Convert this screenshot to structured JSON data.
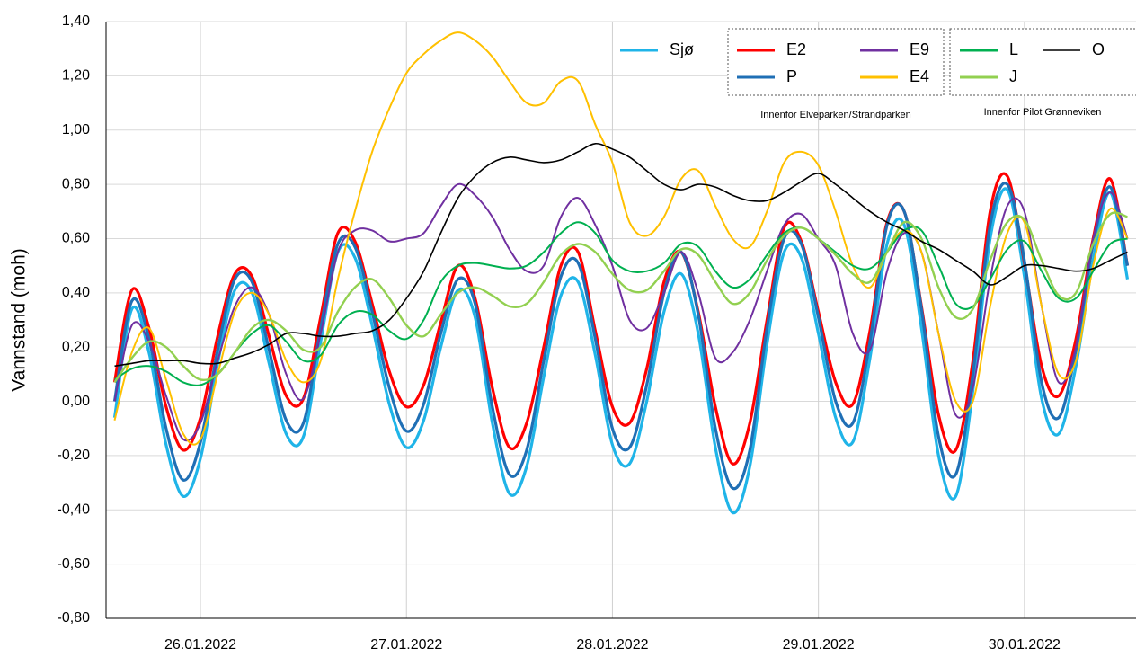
{
  "chart_data": {
    "type": "line",
    "ylabel": "Vannstand (moh)",
    "annotations": [
      "Innenfor Elveparken/Strandparken",
      "Innenfor Pilot Grønneviken"
    ],
    "x": [
      "2022-01-25T14:00",
      "2022-01-25T16:00",
      "2022-01-25T18:00",
      "2022-01-25T20:00",
      "2022-01-25T22:00",
      "2022-01-26T00:00",
      "2022-01-26T02:00",
      "2022-01-26T04:00",
      "2022-01-26T06:00",
      "2022-01-26T08:00",
      "2022-01-26T10:00",
      "2022-01-26T12:00",
      "2022-01-26T14:00",
      "2022-01-26T16:00",
      "2022-01-26T18:00",
      "2022-01-26T20:00",
      "2022-01-26T22:00",
      "2022-01-27T00:00",
      "2022-01-27T02:00",
      "2022-01-27T04:00",
      "2022-01-27T06:00",
      "2022-01-27T08:00",
      "2022-01-27T10:00",
      "2022-01-27T12:00",
      "2022-01-27T14:00",
      "2022-01-27T16:00",
      "2022-01-27T18:00",
      "2022-01-27T20:00",
      "2022-01-27T22:00",
      "2022-01-28T00:00",
      "2022-01-28T02:00",
      "2022-01-28T04:00",
      "2022-01-28T06:00",
      "2022-01-28T08:00",
      "2022-01-28T10:00",
      "2022-01-28T12:00",
      "2022-01-28T14:00",
      "2022-01-28T16:00",
      "2022-01-28T18:00",
      "2022-01-28T20:00",
      "2022-01-28T22:00",
      "2022-01-29T00:00",
      "2022-01-29T02:00",
      "2022-01-29T04:00",
      "2022-01-29T06:00",
      "2022-01-29T08:00",
      "2022-01-29T10:00",
      "2022-01-29T12:00",
      "2022-01-29T14:00",
      "2022-01-29T16:00",
      "2022-01-29T18:00",
      "2022-01-29T20:00",
      "2022-01-29T22:00",
      "2022-01-30T00:00",
      "2022-01-30T02:00",
      "2022-01-30T04:00",
      "2022-01-30T06:00",
      "2022-01-30T08:00",
      "2022-01-30T10:00",
      "2022-01-30T12:00"
    ],
    "xlim": [
      "2022-01-25T13:00",
      "2022-01-30T13:00"
    ],
    "xticks": [
      {
        "value": "2022-01-26T00:00",
        "label": "26.01.2022"
      },
      {
        "value": "2022-01-27T00:00",
        "label": "27.01.2022"
      },
      {
        "value": "2022-01-28T00:00",
        "label": "28.01.2022"
      },
      {
        "value": "2022-01-29T00:00",
        "label": "29.01.2022"
      },
      {
        "value": "2022-01-30T00:00",
        "label": "30.01.2022"
      }
    ],
    "ylim": [
      -0.8,
      1.4
    ],
    "yticks": [
      {
        "value": -0.8,
        "label": "-0,80"
      },
      {
        "value": -0.6,
        "label": "-0,60"
      },
      {
        "value": -0.4,
        "label": "-0,40"
      },
      {
        "value": -0.2,
        "label": "-0,20"
      },
      {
        "value": 0,
        "label": "0,00"
      },
      {
        "value": 0.2,
        "label": "0,20"
      },
      {
        "value": 0.4,
        "label": "0,40"
      },
      {
        "value": 0.6,
        "label": "0,60"
      },
      {
        "value": 0.8,
        "label": "0,80"
      },
      {
        "value": 1.0,
        "label": "1,00"
      },
      {
        "value": 1.2,
        "label": "1,20"
      },
      {
        "value": 1.4,
        "label": "1,40"
      }
    ],
    "grid": true,
    "series": [
      {
        "name": "Sjø",
        "color": "#1fb4e8",
        "values": [
          -0.06,
          0.34,
          0.18,
          -0.16,
          -0.35,
          -0.21,
          0.14,
          0.41,
          0.4,
          0.14,
          -0.12,
          -0.13,
          0.22,
          0.55,
          0.53,
          0.28,
          -0.01,
          -0.17,
          -0.07,
          0.2,
          0.41,
          0.31,
          -0.08,
          -0.34,
          -0.24,
          0.09,
          0.39,
          0.44,
          0.17,
          -0.16,
          -0.23,
          0.0,
          0.33,
          0.47,
          0.25,
          -0.17,
          -0.41,
          -0.24,
          0.21,
          0.55,
          0.53,
          0.25,
          -0.06,
          -0.15,
          0.16,
          0.58,
          0.65,
          0.27,
          -0.2,
          -0.35,
          0.04,
          0.6,
          0.78,
          0.46,
          0.01,
          -0.12,
          0.13,
          0.52,
          0.77,
          0.45
        ]
      },
      {
        "name": "E2",
        "color": "#ff0000",
        "values": [
          0.07,
          0.41,
          0.27,
          -0.02,
          -0.18,
          -0.06,
          0.24,
          0.47,
          0.46,
          0.24,
          0.02,
          0.01,
          0.31,
          0.62,
          0.59,
          0.36,
          0.11,
          -0.02,
          0.06,
          0.29,
          0.5,
          0.38,
          0.05,
          -0.17,
          -0.08,
          0.2,
          0.5,
          0.55,
          0.26,
          -0.02,
          -0.08,
          0.12,
          0.44,
          0.55,
          0.33,
          -0.02,
          -0.23,
          -0.08,
          0.3,
          0.64,
          0.59,
          0.33,
          0.07,
          -0.01,
          0.26,
          0.66,
          0.7,
          0.35,
          -0.05,
          -0.18,
          0.15,
          0.7,
          0.83,
          0.51,
          0.13,
          0.02,
          0.23,
          0.6,
          0.82,
          0.5
        ]
      },
      {
        "name": "P",
        "color": "#1f6fb5",
        "values": [
          0.0,
          0.37,
          0.23,
          -0.1,
          -0.29,
          -0.15,
          0.19,
          0.45,
          0.44,
          0.19,
          -0.07,
          -0.08,
          0.27,
          0.58,
          0.57,
          0.33,
          0.05,
          -0.11,
          -0.01,
          0.25,
          0.45,
          0.36,
          -0.02,
          -0.27,
          -0.18,
          0.15,
          0.46,
          0.51,
          0.23,
          -0.1,
          -0.17,
          0.06,
          0.4,
          0.55,
          0.32,
          -0.1,
          -0.32,
          -0.18,
          0.27,
          0.6,
          0.58,
          0.31,
          0.0,
          -0.08,
          0.22,
          0.65,
          0.7,
          0.34,
          -0.13,
          -0.27,
          0.1,
          0.65,
          0.8,
          0.52,
          0.07,
          -0.06,
          0.19,
          0.58,
          0.79,
          0.5
        ]
      },
      {
        "name": "E9",
        "color": "#7030a0",
        "values": [
          0.0,
          0.28,
          0.22,
          0.02,
          -0.14,
          -0.08,
          0.15,
          0.35,
          0.42,
          0.32,
          0.1,
          0.01,
          0.25,
          0.55,
          0.63,
          0.63,
          0.59,
          0.6,
          0.62,
          0.72,
          0.8,
          0.76,
          0.68,
          0.56,
          0.48,
          0.5,
          0.68,
          0.75,
          0.65,
          0.5,
          0.3,
          0.27,
          0.4,
          0.55,
          0.4,
          0.16,
          0.18,
          0.3,
          0.48,
          0.65,
          0.69,
          0.6,
          0.5,
          0.25,
          0.19,
          0.48,
          0.62,
          0.55,
          0.25,
          -0.05,
          0.05,
          0.45,
          0.72,
          0.7,
          0.35,
          0.07,
          0.2,
          0.6,
          0.77,
          0.6
        ]
      },
      {
        "name": "E4",
        "color": "#ffc000",
        "values": [
          -0.07,
          0.18,
          0.27,
          0.08,
          -0.12,
          -0.14,
          0.1,
          0.33,
          0.4,
          0.32,
          0.15,
          0.07,
          0.15,
          0.45,
          0.7,
          0.92,
          1.08,
          1.21,
          1.28,
          1.33,
          1.36,
          1.33,
          1.27,
          1.18,
          1.1,
          1.1,
          1.18,
          1.18,
          1.02,
          0.88,
          0.66,
          0.61,
          0.68,
          0.82,
          0.85,
          0.72,
          0.6,
          0.57,
          0.7,
          0.88,
          0.92,
          0.87,
          0.7,
          0.5,
          0.42,
          0.55,
          0.63,
          0.55,
          0.25,
          0.0,
          0.0,
          0.35,
          0.62,
          0.66,
          0.35,
          0.1,
          0.15,
          0.5,
          0.71,
          0.6
        ]
      },
      {
        "name": "L",
        "color": "#00b050",
        "values": [
          0.08,
          0.12,
          0.13,
          0.11,
          0.07,
          0.06,
          0.1,
          0.18,
          0.25,
          0.28,
          0.22,
          0.15,
          0.17,
          0.28,
          0.33,
          0.32,
          0.26,
          0.23,
          0.3,
          0.44,
          0.5,
          0.51,
          0.5,
          0.49,
          0.5,
          0.55,
          0.62,
          0.66,
          0.62,
          0.52,
          0.48,
          0.48,
          0.51,
          0.58,
          0.57,
          0.48,
          0.42,
          0.45,
          0.54,
          0.62,
          0.64,
          0.6,
          0.55,
          0.5,
          0.49,
          0.55,
          0.63,
          0.63,
          0.5,
          0.36,
          0.35,
          0.45,
          0.56,
          0.59,
          0.48,
          0.38,
          0.38,
          0.48,
          0.58,
          0.6
        ]
      },
      {
        "name": "J",
        "color": "#92d050",
        "values": [
          0.07,
          0.16,
          0.22,
          0.2,
          0.13,
          0.08,
          0.1,
          0.18,
          0.27,
          0.3,
          0.26,
          0.19,
          0.2,
          0.33,
          0.42,
          0.45,
          0.38,
          0.28,
          0.24,
          0.32,
          0.4,
          0.42,
          0.39,
          0.35,
          0.36,
          0.44,
          0.54,
          0.58,
          0.55,
          0.47,
          0.41,
          0.41,
          0.48,
          0.56,
          0.54,
          0.44,
          0.36,
          0.4,
          0.52,
          0.61,
          0.64,
          0.6,
          0.54,
          0.47,
          0.44,
          0.55,
          0.66,
          0.6,
          0.42,
          0.31,
          0.34,
          0.52,
          0.66,
          0.67,
          0.52,
          0.39,
          0.4,
          0.58,
          0.69,
          0.68
        ]
      },
      {
        "name": "O",
        "color": "#000000",
        "values": [
          0.13,
          0.14,
          0.15,
          0.15,
          0.15,
          0.14,
          0.14,
          0.16,
          0.18,
          0.21,
          0.25,
          0.25,
          0.24,
          0.24,
          0.25,
          0.26,
          0.3,
          0.38,
          0.48,
          0.62,
          0.75,
          0.83,
          0.88,
          0.9,
          0.89,
          0.88,
          0.89,
          0.92,
          0.95,
          0.93,
          0.9,
          0.85,
          0.8,
          0.78,
          0.8,
          0.79,
          0.76,
          0.74,
          0.74,
          0.77,
          0.81,
          0.84,
          0.8,
          0.75,
          0.7,
          0.66,
          0.63,
          0.59,
          0.56,
          0.52,
          0.48,
          0.43,
          0.46,
          0.5,
          0.5,
          0.49,
          0.48,
          0.49,
          0.52,
          0.55
        ]
      }
    ]
  }
}
